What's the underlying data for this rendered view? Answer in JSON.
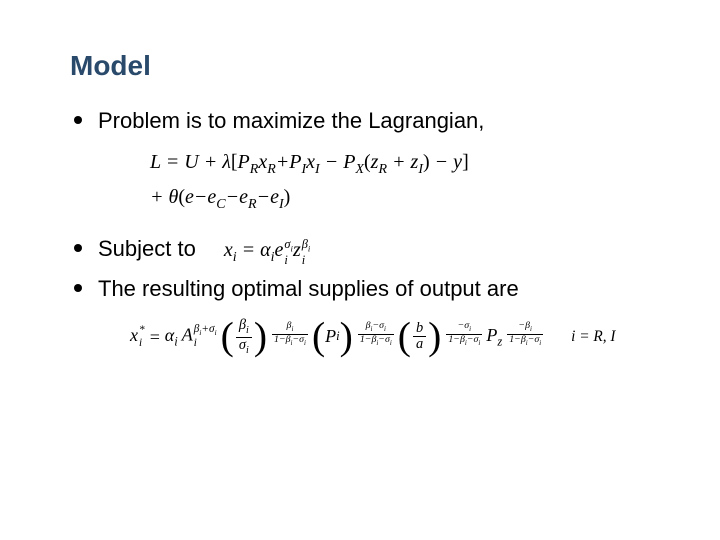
{
  "title_text": "Model",
  "title_color": "#2a4a6b",
  "title_fontsize": 28,
  "title_fontweight": "bold",
  "body_fontsize": 22,
  "body_color": "#000000",
  "bullet_color": "#000000",
  "background_color": "#ffffff",
  "eq_font_family": "Times New Roman",
  "bullets": {
    "b1": "Problem is to maximize the Lagrangian,",
    "b2": "Subject to",
    "b3": "The resulting optimal supplies of output are"
  },
  "eq1": {
    "line1_prefix": "L = U + λ",
    "line1_bracket_open": "[",
    "P": "P",
    "R": "R",
    "x": "x",
    "I": "I",
    "X": "X",
    "z": "z",
    "y": "y",
    "plus": "+",
    "minus": "−",
    "paren_open": "(",
    "paren_close": ")",
    "bracket_close": "]",
    "line2_prefix": "+ θ",
    "e": "e",
    "C": "C"
  },
  "eq2": {
    "x": "x",
    "i": "i",
    "eq": " = ",
    "alpha": "α",
    "e": "e",
    "sigma": "σ",
    "z": "z",
    "beta": "β"
  },
  "eq3": {
    "x": "x",
    "i": "i",
    "star": "*",
    "eq": " = ",
    "alpha": "α",
    "A": "A",
    "beta": "β",
    "sigma": "σ",
    "plus": "+",
    "minus": "−",
    "one": "1",
    "P": "P",
    "b": "b",
    "a": "a",
    "z": "z",
    "tail": "i = R, I"
  }
}
